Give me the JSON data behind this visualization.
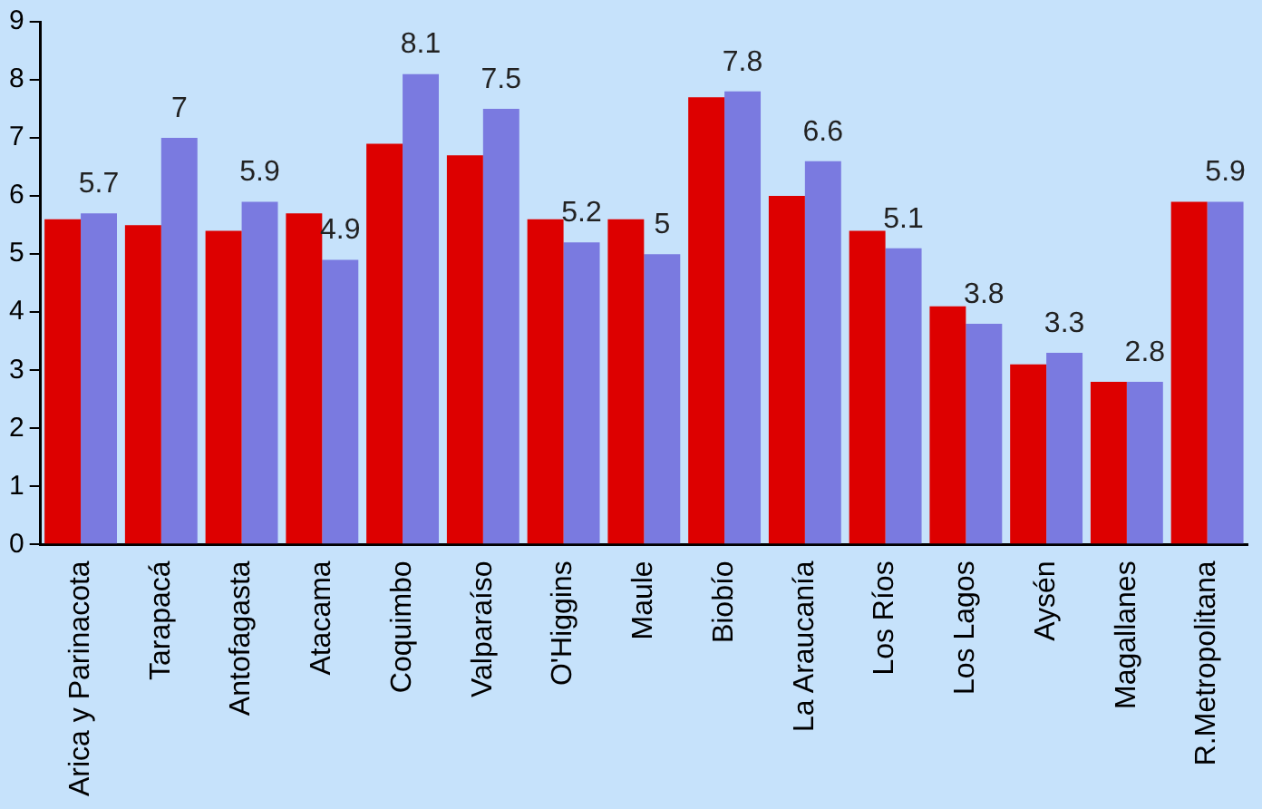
{
  "chart_data": {
    "type": "bar",
    "categories": [
      "Arica y Parinacota",
      "Tarapacá",
      "Antofagasta",
      "Atacama",
      "Coquimbo",
      "Valparaíso",
      "O'Higgins",
      "Maule",
      "Biobío",
      "La Araucanía",
      "Los Ríos",
      "Los Lagos",
      "Aysén",
      "Magallanes",
      "R.Metropolitana"
    ],
    "series": [
      {
        "color": "#dd0000",
        "values": [
          5.6,
          5.5,
          5.4,
          5.7,
          6.9,
          6.7,
          5.6,
          5.6,
          7.7,
          6.0,
          5.4,
          4.1,
          3.1,
          2.8,
          5.9
        ]
      },
      {
        "color": "#7a7ae0",
        "values": [
          5.7,
          7,
          5.9,
          4.9,
          8.1,
          7.5,
          5.2,
          5,
          7.8,
          6.6,
          5.1,
          3.8,
          3.3,
          2.8,
          5.9
        ],
        "value_labels": [
          "5.7",
          "7",
          "5.9",
          "4.9",
          "8.1",
          "7.5",
          "5.2",
          "5",
          "7.8",
          "6.6",
          "5.1",
          "3.8",
          "3.3",
          "2.8",
          "5.9"
        ]
      }
    ],
    "ylim": [
      0,
      9
    ],
    "yticks": [
      0,
      1,
      2,
      3,
      4,
      5,
      6,
      7,
      8,
      9
    ],
    "grid": false,
    "legend": false
  }
}
